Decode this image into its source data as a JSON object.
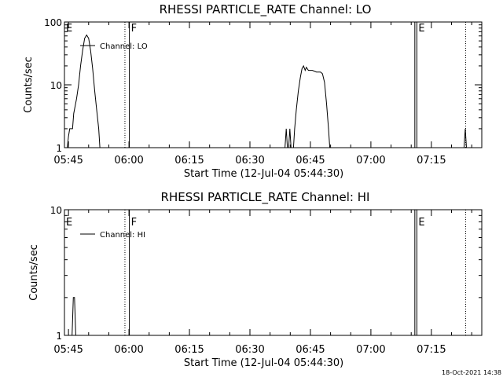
{
  "chart_data": [
    {
      "type": "line",
      "title": "RHESSI PARTICLE_RATE Channel: LO",
      "xlabel": "Start Time (12-Jul-04 05:44:30)",
      "ylabel": "Counts/sec",
      "yscale": "log",
      "ylim": [
        1,
        100
      ],
      "xlim_min": [
        -0.5,
        103
      ],
      "x_ticks": [
        {
          "t": 0.5,
          "label": "05:45"
        },
        {
          "t": 15.5,
          "label": "06:00"
        },
        {
          "t": 30.5,
          "label": "06:15"
        },
        {
          "t": 45.5,
          "label": "06:30"
        },
        {
          "t": 60.5,
          "label": "06:45"
        },
        {
          "t": 75.5,
          "label": "07:00"
        },
        {
          "t": 90.5,
          "label": "07:15"
        }
      ],
      "y_ticks": [
        {
          "v": 1,
          "label": "1"
        },
        {
          "v": 10,
          "label": "10"
        },
        {
          "v": 100,
          "label": "100"
        }
      ],
      "legend": "Channel: LO",
      "markers": [
        {
          "t": -0.5,
          "label": "E",
          "style": "solid"
        },
        {
          "t": 14.5,
          "label": "",
          "style": "dotted"
        },
        {
          "t": 15.6,
          "label": "F",
          "style": "solid"
        },
        {
          "t": 86.4,
          "label": "",
          "style": "solid"
        },
        {
          "t": 86.9,
          "label": "E",
          "style": "solid"
        },
        {
          "t": 99.0,
          "label": "",
          "style": "dotted"
        }
      ],
      "series": [
        {
          "name": "LO",
          "segments": [
            [
              [
                0.2,
                1
              ],
              [
                0.5,
                1.5
              ],
              [
                0.8,
                2
              ],
              [
                1.5,
                2
              ],
              [
                1.8,
                3.5
              ],
              [
                2.5,
                6
              ],
              [
                3,
                10
              ],
              [
                3.5,
                20
              ],
              [
                4,
                35
              ],
              [
                4.5,
                55
              ],
              [
                5,
                62
              ],
              [
                5.5,
                55
              ],
              [
                6,
                35
              ],
              [
                6.5,
                18
              ],
              [
                7,
                8
              ],
              [
                7.5,
                4
              ],
              [
                8,
                2
              ],
              [
                8.3,
                1
              ]
            ],
            [
              [
                54.2,
                1
              ],
              [
                54.5,
                2
              ],
              [
                54.8,
                1
              ]
            ],
            [
              [
                55.1,
                1
              ],
              [
                55.4,
                2
              ],
              [
                55.7,
                1
              ]
            ],
            [
              [
                56.3,
                1
              ],
              [
                56.6,
                2
              ],
              [
                57,
                4
              ],
              [
                57.5,
                8
              ],
              [
                58,
                13
              ],
              [
                58.4,
                18
              ],
              [
                58.8,
                20
              ],
              [
                59.2,
                17
              ],
              [
                59.5,
                19
              ],
              [
                60,
                17
              ],
              [
                61,
                17
              ],
              [
                62,
                16
              ],
              [
                63,
                16
              ],
              [
                63.5,
                15
              ],
              [
                64,
                11
              ],
              [
                64.5,
                5
              ],
              [
                65,
                2
              ],
              [
                65.3,
                1
              ]
            ],
            [
              [
                98.6,
                1
              ],
              [
                98.9,
                2
              ],
              [
                99.2,
                1
              ]
            ]
          ]
        }
      ],
      "stamp": ""
    },
    {
      "type": "line",
      "title": "RHESSI PARTICLE_RATE Channel: HI",
      "xlabel": "Start Time (12-Jul-04 05:44:30)",
      "ylabel": "Counts/sec",
      "yscale": "log",
      "ylim": [
        1,
        10
      ],
      "xlim_min": [
        -0.5,
        103
      ],
      "x_ticks": [
        {
          "t": 0.5,
          "label": "05:45"
        },
        {
          "t": 15.5,
          "label": "06:00"
        },
        {
          "t": 30.5,
          "label": "06:15"
        },
        {
          "t": 45.5,
          "label": "06:30"
        },
        {
          "t": 60.5,
          "label": "06:45"
        },
        {
          "t": 75.5,
          "label": "07:00"
        },
        {
          "t": 90.5,
          "label": "07:15"
        }
      ],
      "y_ticks": [
        {
          "v": 1,
          "label": "1"
        },
        {
          "v": 10,
          "label": "10"
        }
      ],
      "legend": "Channel: HI",
      "markers": [
        {
          "t": -0.5,
          "label": "E",
          "style": "solid"
        },
        {
          "t": 14.5,
          "label": "",
          "style": "dotted"
        },
        {
          "t": 15.6,
          "label": "F",
          "style": "solid"
        },
        {
          "t": 86.4,
          "label": "",
          "style": "solid"
        },
        {
          "t": 86.9,
          "label": "E",
          "style": "solid"
        },
        {
          "t": 99.0,
          "label": "",
          "style": "dotted"
        }
      ],
      "series": [
        {
          "name": "HI",
          "segments": [
            [
              [
                1.4,
                1
              ],
              [
                1.7,
                2
              ],
              [
                2,
                2
              ],
              [
                2.3,
                1
              ]
            ]
          ]
        }
      ],
      "stamp": "18-Oct-2021 14:38"
    }
  ]
}
